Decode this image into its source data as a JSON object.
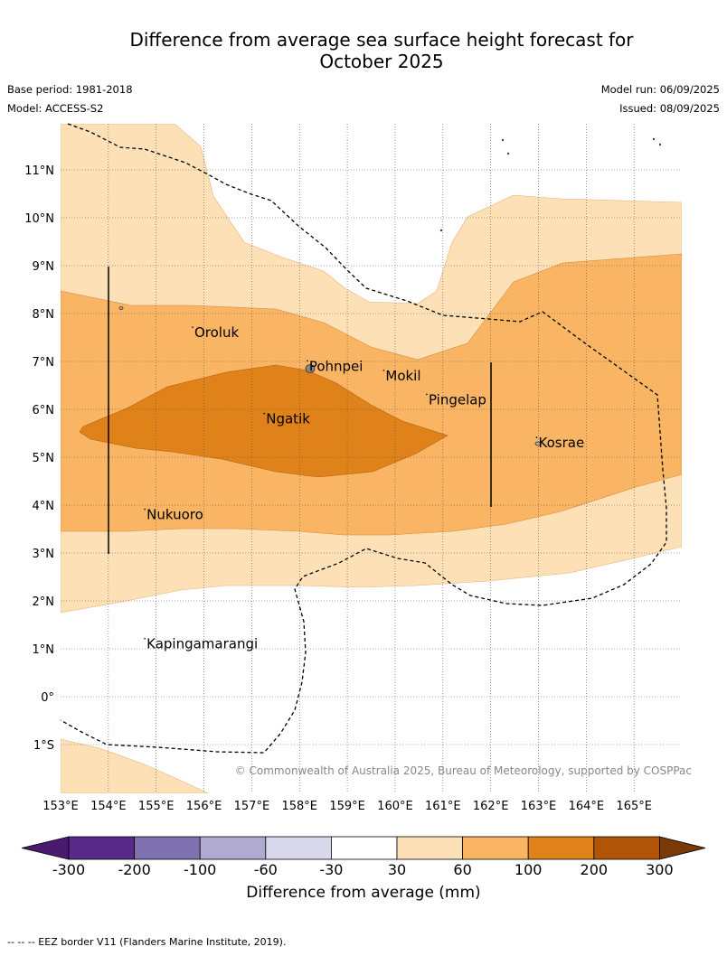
{
  "title_line1": "Difference from average sea surface height forecast for",
  "title_line2": "October 2025",
  "base_period": "Base period: 1981-2018",
  "model": "Model: ACCESS-S2",
  "model_run": "Model run: 06/09/2025",
  "issued": "Issued: 08/09/2025",
  "copyright": "© Commonwealth of Australia 2025, Bureau of Meteorology, supported by COSPPac",
  "map": {
    "lon_labels": [
      "153°E",
      "154°E",
      "155°E",
      "156°E",
      "157°E",
      "158°E",
      "159°E",
      "160°E",
      "161°E",
      "162°E",
      "163°E",
      "164°E",
      "165°E"
    ],
    "lat_labels": [
      "11°N",
      "10°N",
      "9°N",
      "8°N",
      "7°N",
      "6°N",
      "5°N",
      "4°N",
      "3°N",
      "2°N",
      "1°N",
      "0°",
      "1°S"
    ],
    "places": [
      {
        "name": "Oroluk",
        "lon": 155.8,
        "lat": 7.6
      },
      {
        "name": "Pohnpei",
        "lon": 158.2,
        "lat": 6.9
      },
      {
        "name": "Mokil",
        "lon": 159.8,
        "lat": 6.7
      },
      {
        "name": "Pingelap",
        "lon": 160.7,
        "lat": 6.2
      },
      {
        "name": "Ngatik",
        "lon": 157.3,
        "lat": 5.8
      },
      {
        "name": "Kosrae",
        "lon": 163.0,
        "lat": 5.3
      },
      {
        "name": "Nukuoro",
        "lon": 154.8,
        "lat": 3.8
      },
      {
        "name": "Kapingamarangi",
        "lon": 154.8,
        "lat": 1.1
      }
    ]
  },
  "colorbar": {
    "title": "Difference from average (mm)",
    "ticks": [
      "-300",
      "-200",
      "-100",
      "-60",
      "-30",
      "30",
      "60",
      "100",
      "200",
      "300"
    ],
    "colors": [
      "#4a1a6e",
      "#5a2a8a",
      "#8071b0",
      "#b0a9d0",
      "#d8d8ec",
      "#ffffff",
      "#fde0b6",
      "#f9b563",
      "#e0821a",
      "#b05508",
      "#7a3a06"
    ]
  },
  "footer": "-- -- -- EEZ border V11 (Flanders Marine Institute, 2019)."
}
